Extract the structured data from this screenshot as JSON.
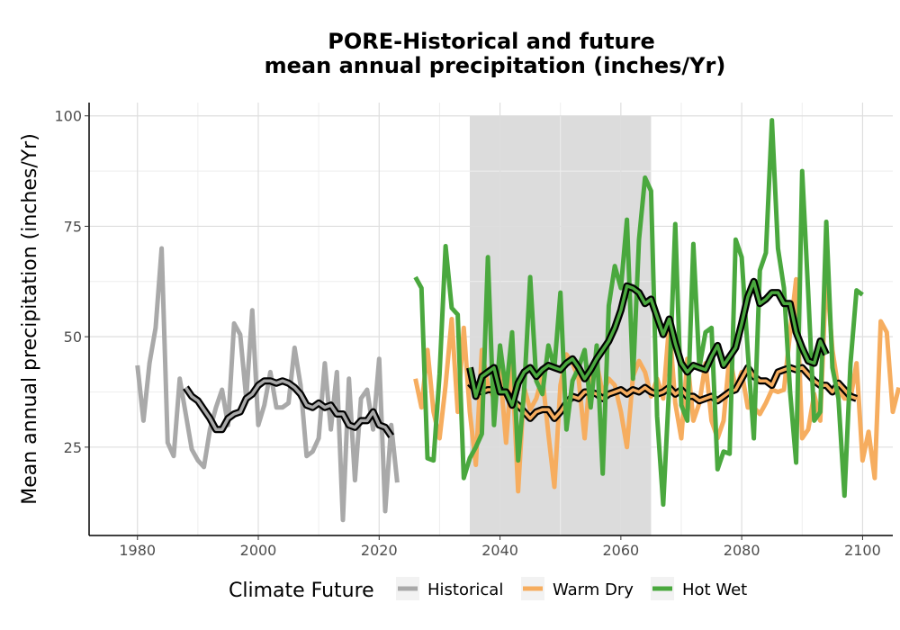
{
  "chart_data": {
    "type": "line",
    "title": [
      "PORE-Historical and future",
      "mean annual precipitation (inches/Yr)"
    ],
    "xlabel": "",
    "ylabel": "Mean annual precipitation (inches/Yr)",
    "xlim": [
      1972,
      2105
    ],
    "ylim": [
      5,
      103
    ],
    "x_ticks": [
      1980,
      2000,
      2020,
      2040,
      2060,
      2080,
      2100
    ],
    "y_ticks": [
      25,
      50,
      75,
      100
    ],
    "grid": true,
    "shaded_period": [
      2035,
      2065
    ],
    "legend": {
      "title": "Climate Future",
      "position": "bottom",
      "entries": [
        {
          "label": "Historical",
          "color": "#a9a9a9"
        },
        {
          "label": "Warm Dry",
          "color": "#f6ad5f"
        },
        {
          "label": "Hot Wet",
          "color": "#4aa83e"
        }
      ]
    },
    "series": [
      {
        "name": "Historical",
        "color": "#a9a9a9",
        "x_start": 1980,
        "values": [
          43.5,
          31,
          44,
          52,
          70,
          26,
          23,
          40.5,
          32.5,
          24.5,
          22,
          20.5,
          29,
          34,
          38,
          30,
          53,
          50.5,
          36,
          56,
          30,
          34.5,
          42,
          34,
          34,
          35,
          47.5,
          39,
          23,
          24,
          27,
          44,
          29,
          42,
          8.5,
          40.5,
          17.5,
          36,
          38,
          29,
          45,
          10.5,
          30,
          17
        ]
      },
      {
        "name": "Historical",
        "color": "#a9a9a9",
        "smoothed": true,
        "x_start": 1988,
        "values": [
          38.5,
          36.5,
          35.5,
          33.5,
          31.5,
          29,
          29,
          31.5,
          32.5,
          33,
          36,
          37,
          39,
          40,
          40,
          39.5,
          40,
          39.5,
          38.5,
          37,
          34.5,
          34,
          35,
          34,
          34.5,
          32.5,
          32.5,
          30,
          29.5,
          31,
          31,
          33,
          30,
          29.5,
          27.5
        ]
      },
      {
        "name": "Warm Dry",
        "color": "#f6ad5f",
        "x_start": 2026,
        "values": [
          40.5,
          34,
          47,
          33,
          27,
          39,
          54,
          33,
          52,
          33,
          21,
          47,
          39,
          36,
          42.5,
          26,
          44,
          15,
          38.5,
          33.5,
          36,
          41,
          28,
          16,
          39,
          46,
          44,
          40.5,
          27,
          43,
          44,
          37,
          40.5,
          39,
          33,
          25,
          41,
          44.5,
          42,
          36.5,
          40.5,
          36,
          53,
          35,
          27,
          45,
          31,
          35,
          44,
          31,
          27,
          31,
          46,
          38,
          42,
          34,
          34,
          32.5,
          35,
          38,
          37.5,
          38,
          51,
          63,
          27,
          29,
          37,
          31,
          65,
          47,
          38,
          36,
          36,
          44,
          22,
          28.5,
          18,
          53.5,
          51,
          33,
          38.5
        ]
      },
      {
        "name": "Warm Dry",
        "color": "#f6ad5f",
        "smoothed": true,
        "x_start": 2035,
        "values": [
          39.5,
          38,
          37.5,
          38,
          38,
          38,
          37.5,
          35.5,
          34.5,
          33,
          31.5,
          33,
          33.5,
          33.5,
          31.5,
          33,
          35,
          36.5,
          36,
          37.5,
          37.5,
          37,
          36,
          37,
          37.5,
          38,
          37,
          38,
          37.5,
          38.5,
          37.5,
          37,
          37.5,
          38.5,
          37,
          38,
          36.5,
          36.5,
          35.5,
          36,
          36.5,
          35.5,
          36.5,
          37.5,
          38,
          40.5,
          43,
          41,
          40,
          40,
          39,
          42,
          42.5,
          43,
          42.5,
          43,
          41.5,
          40,
          39,
          39,
          37.5,
          39.5,
          38,
          36.5,
          36
        ]
      },
      {
        "name": "Hot Wet",
        "color": "#4aa83e",
        "x_start": 2026,
        "values": [
          63.5,
          61,
          22.5,
          22,
          41.5,
          70.5,
          56.5,
          55,
          18,
          22.5,
          25,
          28,
          68,
          30,
          48,
          37.5,
          51,
          22,
          38,
          63.5,
          40,
          37,
          48,
          43,
          60,
          29,
          40,
          43,
          47,
          34,
          48,
          19,
          57,
          66,
          61,
          76.5,
          40.5,
          72,
          86,
          83,
          32,
          12,
          39,
          75.5,
          34.5,
          31,
          71,
          43,
          51,
          52,
          20,
          24,
          23.5,
          72,
          68,
          46.5,
          27,
          65,
          69,
          99,
          70,
          61,
          37.5,
          21.5,
          87.5,
          60,
          31,
          33,
          76,
          43,
          36,
          14,
          44,
          60.5,
          59.5
        ]
      },
      {
        "name": "Hot Wet",
        "color": "#4aa83e",
        "smoothed": true,
        "x_start": 2035,
        "values": [
          43,
          36.5,
          41,
          42,
          43,
          37.5,
          37.5,
          34.5,
          39.5,
          42,
          43,
          41,
          42.5,
          43.5,
          43,
          42.5,
          44,
          45,
          43,
          40.5,
          42.5,
          45,
          47,
          49,
          52,
          56,
          61.5,
          61,
          60,
          57.5,
          58.5,
          54.5,
          50.5,
          54,
          48.5,
          44,
          42,
          43.5,
          43,
          42.5,
          45.5,
          48,
          43.5,
          45.5,
          47.5,
          53,
          59,
          62.5,
          57.5,
          58.5,
          60,
          60,
          57.5,
          57.5,
          51,
          47.5,
          44.5,
          44,
          49,
          46
        ]
      }
    ]
  }
}
